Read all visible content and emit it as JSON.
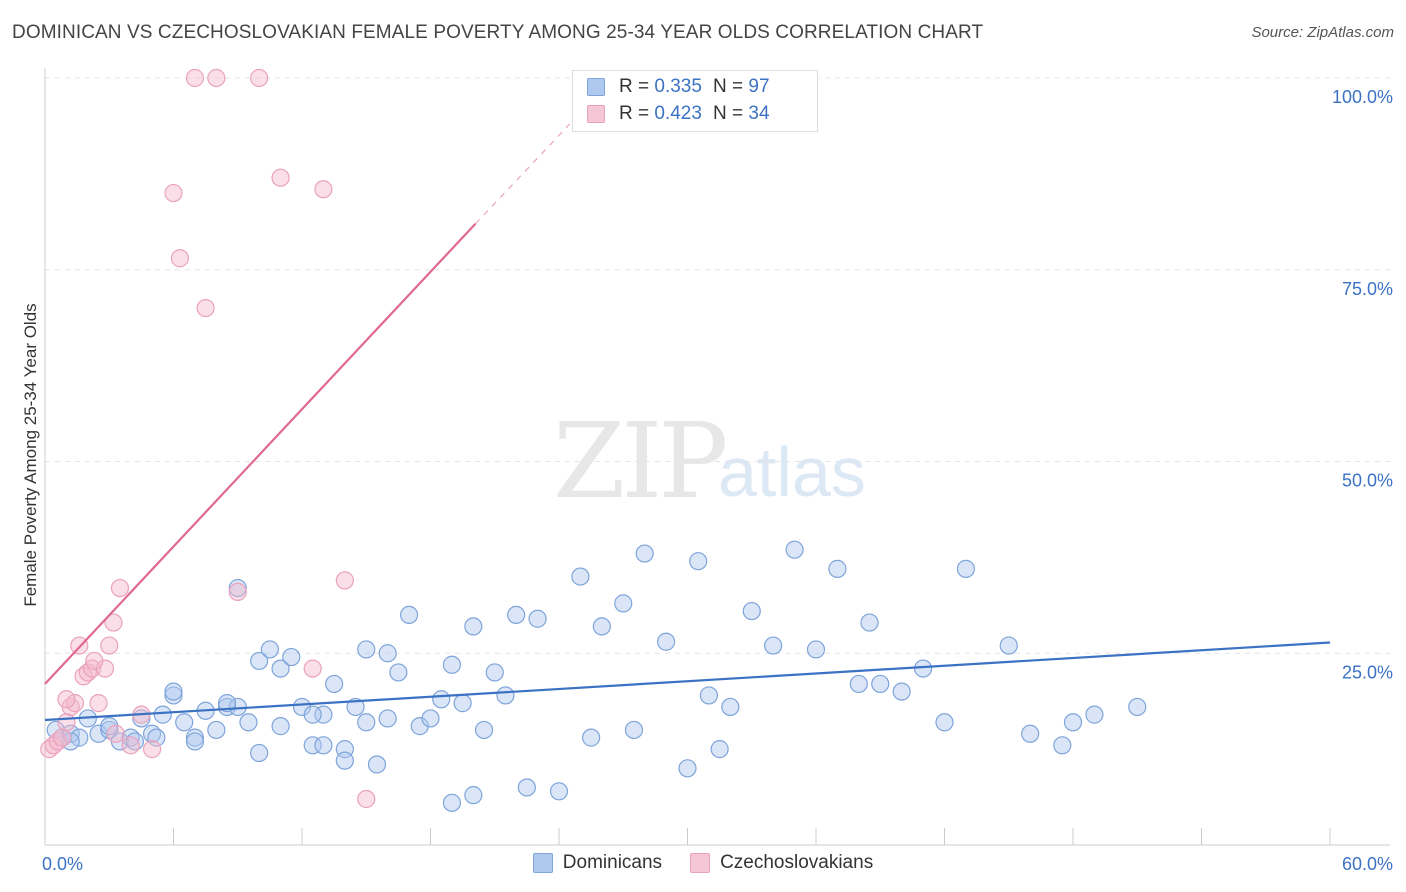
{
  "title": "DOMINICAN VS CZECHOSLOVAKIAN FEMALE POVERTY AMONG 25-34 YEAR OLDS CORRELATION CHART",
  "source": "Source: ZipAtlas.com",
  "watermark": {
    "zip": "ZIP",
    "atlas": "atlas"
  },
  "colors": {
    "blue": "#3b72c4",
    "blue_fill": "#aec8ee",
    "pink": "#e06890",
    "pink_fill": "#f5b8cc",
    "grid": "#e4e4e4"
  },
  "legend": {
    "rows": [
      {
        "r_label": "R =",
        "r_value": "0.335",
        "n_label": "N =",
        "n_value": "97"
      },
      {
        "r_label": "R =",
        "r_value": "0.423",
        "n_label": "N =",
        "n_value": "34"
      }
    ]
  },
  "chart_data": {
    "type": "scatter",
    "title": "DOMINICAN VS CZECHOSLOVAKIAN FEMALE POVERTY AMONG 25-34 YEAR OLDS CORRELATION CHART",
    "xlabel": "",
    "ylabel": "Female Poverty Among 25-34 Year Olds",
    "xlim": [
      0,
      60
    ],
    "ylim": [
      0,
      100
    ],
    "x_tick_labels": [
      "0.0%",
      "60.0%"
    ],
    "y_tick_labels": [
      "25.0%",
      "50.0%",
      "75.0%",
      "100.0%"
    ],
    "y_ticks": [
      25,
      50,
      75,
      100
    ],
    "series": [
      {
        "name": "Dominicans",
        "r": 0.335,
        "n": 97,
        "trend": {
          "x0": 0,
          "y0": 16.3,
          "x1": 60,
          "y1": 26.4,
          "dashed_to": null
        },
        "points": [
          [
            0.5,
            15
          ],
          [
            0.8,
            14
          ],
          [
            1.2,
            14.5
          ],
          [
            1.6,
            14
          ],
          [
            2,
            16.5
          ],
          [
            2.5,
            14.5
          ],
          [
            3,
            15
          ],
          [
            3.5,
            13.5
          ],
          [
            4,
            14
          ],
          [
            4.5,
            16.5
          ],
          [
            5,
            14.5
          ],
          [
            5.5,
            17
          ],
          [
            6,
            19.5
          ],
          [
            6.5,
            16
          ],
          [
            7,
            14
          ],
          [
            7.5,
            17.5
          ],
          [
            8,
            15
          ],
          [
            8.5,
            18
          ],
          [
            9,
            18
          ],
          [
            9.5,
            16
          ],
          [
            10,
            12
          ],
          [
            10.5,
            25.5
          ],
          [
            11,
            23
          ],
          [
            11.5,
            24.5
          ],
          [
            12,
            18
          ],
          [
            12.5,
            13
          ],
          [
            13,
            17
          ],
          [
            13.5,
            21
          ],
          [
            14,
            12.5
          ],
          [
            14.5,
            18
          ],
          [
            15,
            25.5
          ],
          [
            15.5,
            10.5
          ],
          [
            16,
            16.5
          ],
          [
            16.5,
            22.5
          ],
          [
            17,
            30
          ],
          [
            17.5,
            15.5
          ],
          [
            18,
            16.5
          ],
          [
            18.5,
            19
          ],
          [
            19,
            23.5
          ],
          [
            19.5,
            18.5
          ],
          [
            20,
            28.5
          ],
          [
            20.5,
            15
          ],
          [
            21,
            22.5
          ],
          [
            21.5,
            19.5
          ],
          [
            22,
            30
          ],
          [
            22.5,
            7.5
          ],
          [
            23,
            29.5
          ],
          [
            24,
            7
          ],
          [
            25,
            35
          ],
          [
            25.5,
            14
          ],
          [
            26,
            28.5
          ],
          [
            27,
            31.5
          ],
          [
            27.5,
            15
          ],
          [
            28,
            38
          ],
          [
            29,
            26.5
          ],
          [
            30,
            10
          ],
          [
            30.5,
            37
          ],
          [
            31,
            19.5
          ],
          [
            31.5,
            12.5
          ],
          [
            32,
            18
          ],
          [
            33,
            30.5
          ],
          [
            34,
            26
          ],
          [
            35,
            38.5
          ],
          [
            36,
            25.5
          ],
          [
            37,
            36
          ],
          [
            38,
            21
          ],
          [
            38.5,
            29
          ],
          [
            39,
            21
          ],
          [
            40,
            20
          ],
          [
            41,
            23
          ],
          [
            42,
            16
          ],
          [
            43,
            36
          ],
          [
            45,
            26
          ],
          [
            46,
            14.5
          ],
          [
            47.5,
            13
          ],
          [
            48,
            16
          ],
          [
            49,
            17
          ],
          [
            51,
            18
          ],
          [
            9,
            33.5
          ],
          [
            8.5,
            18.5
          ],
          [
            10,
            24
          ],
          [
            11,
            15.5
          ],
          [
            12.5,
            17
          ],
          [
            15,
            16
          ],
          [
            16,
            25
          ],
          [
            6,
            20
          ],
          [
            7,
            13.5
          ],
          [
            1.2,
            13.5
          ],
          [
            3,
            15.5
          ],
          [
            4.2,
            13.5
          ],
          [
            5.2,
            14
          ],
          [
            13,
            13
          ],
          [
            14,
            11
          ],
          [
            19,
            5.5
          ],
          [
            20,
            6.5
          ]
        ]
      },
      {
        "name": "Czechoslovakians",
        "r": 0.423,
        "n": 34,
        "trend": {
          "x0": 0,
          "y0": 21,
          "x1": 20.1,
          "y1": 81,
          "dashed_to": {
            "x": 24.5,
            "y": 94
          }
        },
        "points": [
          [
            0.2,
            12.5
          ],
          [
            0.4,
            13
          ],
          [
            0.6,
            13.5
          ],
          [
            0.8,
            14
          ],
          [
            1,
            16
          ],
          [
            1.2,
            18
          ],
          [
            1.4,
            18.5
          ],
          [
            1.6,
            26
          ],
          [
            1.8,
            22
          ],
          [
            2,
            22.5
          ],
          [
            2.2,
            23
          ],
          [
            2.5,
            18.5
          ],
          [
            2.8,
            23
          ],
          [
            3,
            26
          ],
          [
            3.2,
            29
          ],
          [
            3.5,
            33.5
          ],
          [
            4,
            13
          ],
          [
            4.5,
            17
          ],
          [
            5,
            12.5
          ],
          [
            6,
            85
          ],
          [
            6.3,
            76.5
          ],
          [
            7,
            100
          ],
          [
            7.5,
            70
          ],
          [
            8,
            100
          ],
          [
            9,
            33
          ],
          [
            10,
            100
          ],
          [
            11,
            87
          ],
          [
            12.5,
            23
          ],
          [
            13,
            85.5
          ],
          [
            14,
            34.5
          ],
          [
            15,
            6
          ],
          [
            1,
            19
          ],
          [
            2.3,
            24
          ],
          [
            3.3,
            14.5
          ]
        ]
      }
    ]
  }
}
